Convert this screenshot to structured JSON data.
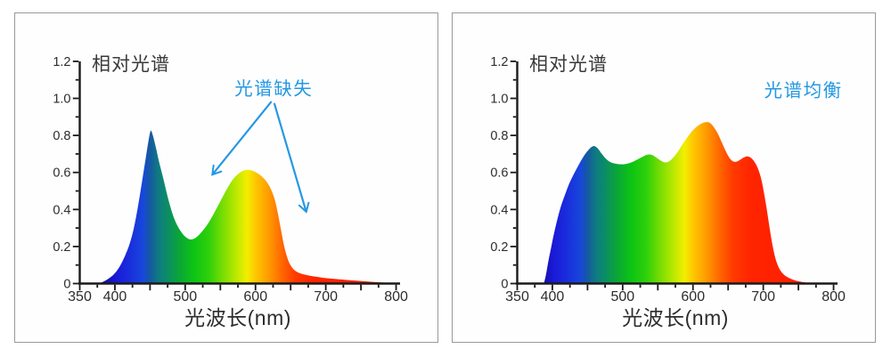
{
  "page": {
    "background": "#ffffff",
    "panel_border_color": "#999999",
    "panel_background": "#fefefe"
  },
  "colors": {
    "axis": "#1a1a1a",
    "tick_label": "#2d2d2d",
    "title_text": "#3a3a3a",
    "annotation_blue": "#2598e4"
  },
  "spectrum_gradient": [
    {
      "nm": 350,
      "color": "#0d0a78"
    },
    {
      "nm": 378,
      "color": "#100c8e"
    },
    {
      "nm": 390,
      "color": "#1512b4"
    },
    {
      "nm": 402,
      "color": "#1a1ad8"
    },
    {
      "nm": 422,
      "color": "#1a2fdc"
    },
    {
      "nm": 440,
      "color": "#1747dc"
    },
    {
      "nm": 450,
      "color": "#16599f"
    },
    {
      "nm": 462,
      "color": "#0e7b83"
    },
    {
      "nm": 476,
      "color": "#0b8f62"
    },
    {
      "nm": 492,
      "color": "#0aa636"
    },
    {
      "nm": 512,
      "color": "#0cc414"
    },
    {
      "nm": 534,
      "color": "#30d00a"
    },
    {
      "nm": 555,
      "color": "#7ede03"
    },
    {
      "nm": 571,
      "color": "#b5e800"
    },
    {
      "nm": 588,
      "color": "#f3ee00"
    },
    {
      "nm": 601,
      "color": "#fec500"
    },
    {
      "nm": 619,
      "color": "#ff9b00"
    },
    {
      "nm": 638,
      "color": "#ff6600"
    },
    {
      "nm": 657,
      "color": "#ff3a00"
    },
    {
      "nm": 683,
      "color": "#ff2400"
    },
    {
      "nm": 800,
      "color": "#fe1c00"
    }
  ],
  "chart_data": [
    {
      "type": "area",
      "title": "相对光谱",
      "xlabel": "光波长(nm)",
      "ylabel": "",
      "xlim": [
        350,
        800
      ],
      "ylim": [
        0,
        1.2
      ],
      "x_tick_labels": [
        350,
        400,
        500,
        600,
        700,
        800
      ],
      "x_minor_tick_step": 25,
      "y_tick_labels": [
        {
          "v": 0,
          "t": "0"
        },
        {
          "v": 0.2,
          "t": "0.2"
        },
        {
          "v": 0.4,
          "t": "0.4"
        },
        {
          "v": 0.6,
          "t": "0.6"
        },
        {
          "v": 0.8,
          "t": "0.8"
        },
        {
          "v": 1.0,
          "t": "1.0"
        },
        {
          "v": 1.2,
          "t": "1.2"
        }
      ],
      "y_minor_tick_step": 0.1,
      "grid": false,
      "fill": "spectrum-gradient",
      "annotation": {
        "label": "光谱缺失",
        "pos": [
          626,
          1.02
        ],
        "arrows": [
          {
            "from": [
              622,
              0.98
            ],
            "to": [
              539,
              0.59
            ]
          },
          {
            "from": [
              627,
              0.97
            ],
            "to": [
              672,
              0.39
            ]
          }
        ]
      },
      "points": [
        [
          378,
          0
        ],
        [
          386,
          0.015
        ],
        [
          394,
          0.035
        ],
        [
          401,
          0.06
        ],
        [
          408,
          0.1
        ],
        [
          415,
          0.155
        ],
        [
          421,
          0.215
        ],
        [
          427,
          0.3
        ],
        [
          433,
          0.42
        ],
        [
          439,
          0.56
        ],
        [
          444,
          0.68
        ],
        [
          448,
          0.775
        ],
        [
          451,
          0.825
        ],
        [
          454,
          0.8
        ],
        [
          458,
          0.74
        ],
        [
          463,
          0.655
        ],
        [
          469,
          0.565
        ],
        [
          476,
          0.455
        ],
        [
          483,
          0.365
        ],
        [
          490,
          0.305
        ],
        [
          497,
          0.265
        ],
        [
          503,
          0.245
        ],
        [
          508,
          0.238
        ],
        [
          514,
          0.245
        ],
        [
          521,
          0.268
        ],
        [
          529,
          0.305
        ],
        [
          537,
          0.352
        ],
        [
          546,
          0.415
        ],
        [
          555,
          0.48
        ],
        [
          563,
          0.535
        ],
        [
          570,
          0.572
        ],
        [
          577,
          0.597
        ],
        [
          583,
          0.61
        ],
        [
          589,
          0.615
        ],
        [
          595,
          0.61
        ],
        [
          601,
          0.6
        ],
        [
          607,
          0.585
        ],
        [
          613,
          0.563
        ],
        [
          618,
          0.537
        ],
        [
          623,
          0.5
        ],
        [
          628,
          0.445
        ],
        [
          632,
          0.375
        ],
        [
          636,
          0.295
        ],
        [
          640,
          0.215
        ],
        [
          644,
          0.155
        ],
        [
          648,
          0.112
        ],
        [
          653,
          0.082
        ],
        [
          659,
          0.063
        ],
        [
          666,
          0.052
        ],
        [
          675,
          0.044
        ],
        [
          686,
          0.037
        ],
        [
          698,
          0.03
        ],
        [
          712,
          0.025
        ],
        [
          728,
          0.02
        ],
        [
          745,
          0.015
        ],
        [
          762,
          0.01
        ],
        [
          778,
          0.006
        ],
        [
          790,
          0.003
        ],
        [
          798,
          0.001
        ]
      ]
    },
    {
      "type": "area",
      "title": "相对光谱",
      "xlabel": "光波长(nm)",
      "ylabel": "",
      "xlim": [
        350,
        800
      ],
      "ylim": [
        0,
        1.2
      ],
      "x_tick_labels": [
        350,
        400,
        500,
        600,
        700,
        800
      ],
      "x_minor_tick_step": 25,
      "y_tick_labels": [
        {
          "v": 0,
          "t": "0"
        },
        {
          "v": 0.2,
          "t": "0.2"
        },
        {
          "v": 0.4,
          "t": "0.4"
        },
        {
          "v": 0.6,
          "t": "0.6"
        },
        {
          "v": 0.8,
          "t": "0.8"
        },
        {
          "v": 1.0,
          "t": "1.0"
        },
        {
          "v": 1.2,
          "t": "1.2"
        }
      ],
      "y_minor_tick_step": 0.1,
      "grid": false,
      "fill": "spectrum-gradient",
      "annotation": {
        "label": "光谱均衡",
        "pos": [
          757,
          1.01
        ],
        "arrows": []
      },
      "points": [
        [
          388,
          0
        ],
        [
          391,
          0.05
        ],
        [
          394,
          0.115
        ],
        [
          398,
          0.19
        ],
        [
          402,
          0.265
        ],
        [
          407,
          0.345
        ],
        [
          412,
          0.415
        ],
        [
          418,
          0.48
        ],
        [
          424,
          0.54
        ],
        [
          431,
          0.595
        ],
        [
          438,
          0.645
        ],
        [
          445,
          0.69
        ],
        [
          451,
          0.72
        ],
        [
          456,
          0.738
        ],
        [
          460,
          0.742
        ],
        [
          465,
          0.728
        ],
        [
          470,
          0.702
        ],
        [
          476,
          0.675
        ],
        [
          482,
          0.657
        ],
        [
          489,
          0.648
        ],
        [
          497,
          0.644
        ],
        [
          505,
          0.646
        ],
        [
          513,
          0.655
        ],
        [
          521,
          0.67
        ],
        [
          528,
          0.684
        ],
        [
          534,
          0.695
        ],
        [
          539,
          0.697
        ],
        [
          544,
          0.69
        ],
        [
          550,
          0.675
        ],
        [
          556,
          0.66
        ],
        [
          561,
          0.654
        ],
        [
          566,
          0.66
        ],
        [
          572,
          0.68
        ],
        [
          579,
          0.715
        ],
        [
          586,
          0.757
        ],
        [
          593,
          0.795
        ],
        [
          600,
          0.828
        ],
        [
          607,
          0.852
        ],
        [
          613,
          0.866
        ],
        [
          619,
          0.872
        ],
        [
          624,
          0.868
        ],
        [
          629,
          0.848
        ],
        [
          635,
          0.812
        ],
        [
          641,
          0.762
        ],
        [
          647,
          0.712
        ],
        [
          652,
          0.678
        ],
        [
          657,
          0.66
        ],
        [
          662,
          0.658
        ],
        [
          667,
          0.668
        ],
        [
          672,
          0.68
        ],
        [
          677,
          0.687
        ],
        [
          682,
          0.68
        ],
        [
          687,
          0.66
        ],
        [
          692,
          0.625
        ],
        [
          697,
          0.566
        ],
        [
          701,
          0.49
        ],
        [
          705,
          0.4
        ],
        [
          709,
          0.3
        ],
        [
          713,
          0.21
        ],
        [
          717,
          0.14
        ],
        [
          721,
          0.095
        ],
        [
          726,
          0.062
        ],
        [
          732,
          0.04
        ],
        [
          739,
          0.026
        ],
        [
          747,
          0.015
        ],
        [
          756,
          0.008
        ],
        [
          766,
          0.003
        ],
        [
          775,
          0
        ]
      ]
    }
  ]
}
